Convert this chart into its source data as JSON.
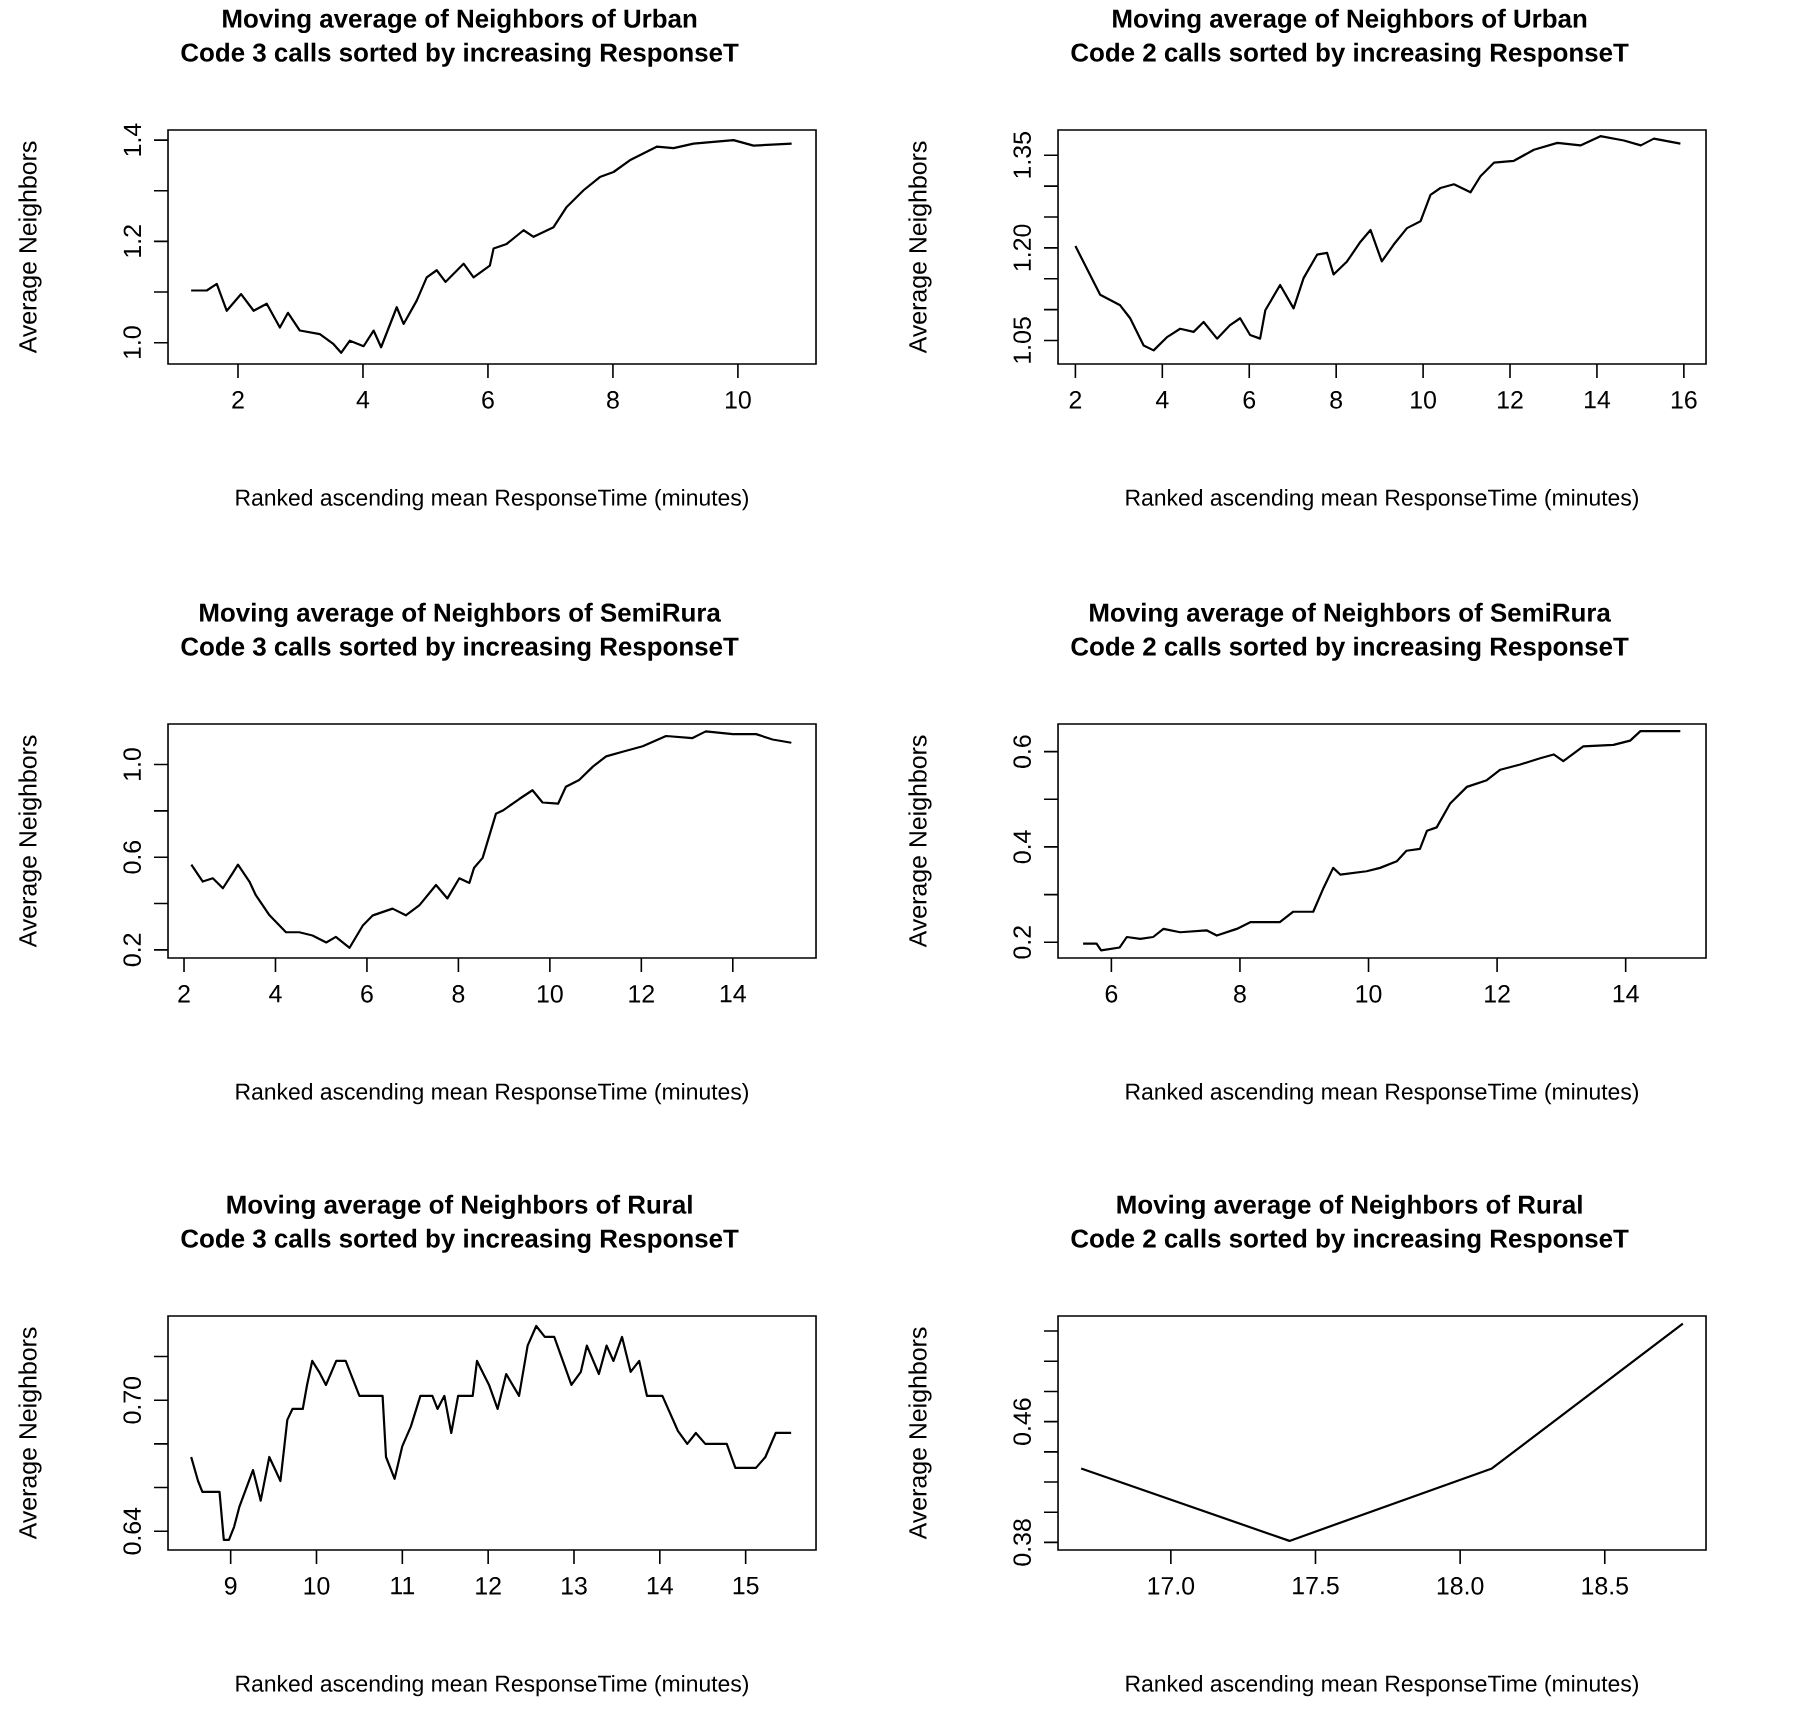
{
  "chart_data": [
    {
      "type": "line",
      "title": "Moving average of Neighbors of Urban",
      "subtitle": "Code 3 calls sorted by increasing ResponseT",
      "xlabel": "Ranked ascending mean ResponseTime (minutes)",
      "ylabel": "Average Neighbors",
      "color": "#000000",
      "x": [
        1.25,
        1.5,
        1.66,
        1.82,
        2.05,
        2.25,
        2.46,
        2.67,
        2.8,
        2.99,
        3.31,
        3.53,
        3.65,
        3.79,
        4.01,
        4.17,
        4.29,
        4.54,
        4.65,
        4.86,
        5.02,
        5.18,
        5.32,
        5.61,
        5.77,
        6.03,
        6.09,
        6.3,
        6.57,
        6.73,
        7.05,
        7.26,
        7.53,
        7.79,
        8.01,
        8.27,
        8.7,
        8.97,
        9.29,
        9.93,
        10.25,
        10.86
      ],
      "values": [
        1.103,
        1.103,
        1.116,
        1.063,
        1.096,
        1.063,
        1.077,
        1.03,
        1.059,
        1.024,
        1.017,
        0.997,
        0.98,
        1.004,
        0.993,
        1.024,
        0.991,
        1.07,
        1.037,
        1.083,
        1.129,
        1.143,
        1.12,
        1.156,
        1.129,
        1.152,
        1.186,
        1.195,
        1.222,
        1.209,
        1.228,
        1.268,
        1.301,
        1.327,
        1.337,
        1.36,
        1.387,
        1.384,
        1.393,
        1.4,
        1.389,
        1.393
      ],
      "xlim": [
        0.88,
        11.25
      ],
      "ylim": [
        0.958,
        1.42
      ],
      "xticks": [
        2,
        4,
        6,
        8,
        10
      ],
      "yticks": [
        {
          "value": 1.0,
          "label": "1.0"
        },
        {
          "value": 1.1,
          "label": null
        },
        1.2,
        {
          "value": 1.3,
          "label": null
        },
        1.4
      ]
    },
    {
      "type": "line",
      "title": "Moving average of Neighbors of Urban",
      "subtitle": "Code 2 calls sorted by increasing ResponseT",
      "xlabel": "Ranked ascending mean ResponseTime (minutes)",
      "ylabel": "Average Neighbors",
      "color": "#000000",
      "x": [
        2.0,
        2.26,
        2.57,
        3.03,
        3.26,
        3.57,
        3.8,
        4.1,
        4.41,
        4.72,
        4.95,
        5.26,
        5.56,
        5.79,
        6.02,
        6.25,
        6.37,
        6.71,
        7.02,
        7.25,
        7.56,
        7.79,
        7.94,
        8.25,
        8.56,
        8.79,
        9.05,
        9.32,
        9.63,
        9.94,
        10.17,
        10.4,
        10.71,
        11.09,
        11.32,
        11.63,
        12.09,
        12.55,
        13.09,
        13.62,
        14.08,
        14.62,
        15.01,
        15.31,
        15.92
      ],
      "values": [
        1.203,
        1.167,
        1.124,
        1.107,
        1.086,
        1.042,
        1.034,
        1.055,
        1.069,
        1.064,
        1.08,
        1.053,
        1.075,
        1.086,
        1.059,
        1.053,
        1.099,
        1.14,
        1.102,
        1.151,
        1.189,
        1.192,
        1.157,
        1.178,
        1.21,
        1.229,
        1.178,
        1.205,
        1.232,
        1.243,
        1.286,
        1.297,
        1.303,
        1.29,
        1.316,
        1.338,
        1.341,
        1.359,
        1.37,
        1.366,
        1.381,
        1.374,
        1.366,
        1.377,
        1.369
      ],
      "xlim": [
        1.6,
        16.51
      ],
      "ylim": [
        1.012,
        1.391
      ],
      "xticks": [
        2,
        4,
        6,
        8,
        10,
        12,
        14,
        16
      ],
      "yticks": [
        1.05,
        {
          "value": 1.1,
          "label": null
        },
        {
          "value": 1.15,
          "label": null
        },
        {
          "value": 1.2,
          "label": "1.20"
        },
        {
          "value": 1.25,
          "label": null
        },
        {
          "value": 1.3,
          "label": null
        },
        1.35
      ]
    },
    {
      "type": "line",
      "title": "Moving average of Neighbors of SemiRura",
      "subtitle": "Code 3 calls sorted by increasing ResponseT",
      "xlabel": "Ranked ascending mean ResponseTime (minutes)",
      "ylabel": "Average Neighbors",
      "color": "#000000",
      "x": [
        2.16,
        2.41,
        2.63,
        2.85,
        3.06,
        3.18,
        3.43,
        3.57,
        3.87,
        4.23,
        4.52,
        4.81,
        5.11,
        5.32,
        5.62,
        5.91,
        6.13,
        6.56,
        6.85,
        7.15,
        7.51,
        7.76,
        8.02,
        8.24,
        8.34,
        8.53,
        8.82,
        8.97,
        9.33,
        9.62,
        9.84,
        10.18,
        10.35,
        10.64,
        10.94,
        11.23,
        11.59,
        12.03,
        12.54,
        13.12,
        13.41,
        14.0,
        14.51,
        14.87,
        15.28
      ],
      "values": [
        0.568,
        0.495,
        0.509,
        0.466,
        0.53,
        0.568,
        0.495,
        0.436,
        0.349,
        0.276,
        0.276,
        0.262,
        0.232,
        0.256,
        0.209,
        0.305,
        0.349,
        0.378,
        0.349,
        0.393,
        0.48,
        0.422,
        0.509,
        0.489,
        0.553,
        0.597,
        0.787,
        0.801,
        0.851,
        0.889,
        0.836,
        0.831,
        0.904,
        0.933,
        0.991,
        1.035,
        1.055,
        1.079,
        1.123,
        1.114,
        1.143,
        1.131,
        1.131,
        1.108,
        1.094
      ],
      "xlim": [
        1.65,
        15.82
      ],
      "ylim": [
        0.165,
        1.175
      ],
      "xticks": [
        2,
        4,
        6,
        8,
        10,
        12,
        14
      ],
      "yticks": [
        0.2,
        {
          "value": 0.4,
          "label": null
        },
        0.6,
        {
          "value": 0.8,
          "label": null
        },
        {
          "value": 1.0,
          "label": "1.0"
        }
      ]
    },
    {
      "type": "line",
      "title": "Moving average of Neighbors of SemiRura",
      "subtitle": "Code 2 calls sorted by increasing ResponseT",
      "xlabel": "Ranked ascending mean ResponseTime (minutes)",
      "ylabel": "Average Neighbors",
      "color": "#000000",
      "x": [
        5.56,
        5.77,
        5.84,
        6.13,
        6.24,
        6.45,
        6.65,
        6.81,
        7.07,
        7.48,
        7.64,
        7.95,
        8.16,
        8.62,
        8.83,
        9.14,
        9.3,
        9.45,
        9.56,
        9.97,
        10.18,
        10.44,
        10.59,
        10.8,
        10.91,
        11.06,
        11.27,
        11.53,
        11.84,
        12.05,
        12.36,
        12.67,
        12.88,
        13.03,
        13.34,
        13.81,
        14.07,
        14.23,
        14.85
      ],
      "values": [
        0.197,
        0.197,
        0.183,
        0.189,
        0.211,
        0.207,
        0.211,
        0.228,
        0.221,
        0.225,
        0.214,
        0.228,
        0.242,
        0.242,
        0.264,
        0.264,
        0.314,
        0.356,
        0.342,
        0.349,
        0.356,
        0.37,
        0.392,
        0.396,
        0.434,
        0.441,
        0.491,
        0.526,
        0.54,
        0.562,
        0.573,
        0.586,
        0.594,
        0.58,
        0.611,
        0.614,
        0.623,
        0.643,
        0.643
      ],
      "xlim": [
        5.17,
        15.25
      ],
      "ylim": [
        0.167,
        0.658
      ],
      "xticks": [
        6,
        8,
        10,
        12,
        14
      ],
      "yticks": [
        0.2,
        {
          "value": 0.3,
          "label": null
        },
        0.4,
        {
          "value": 0.5,
          "label": null
        },
        0.6
      ]
    },
    {
      "type": "line",
      "title": "Moving average of Neighbors of Rural",
      "subtitle": "Code 3 calls sorted by increasing ResponseT",
      "xlabel": "Ranked ascending mean ResponseTime (minutes)",
      "ylabel": "Average Neighbors",
      "color": "#000000",
      "x": [
        8.54,
        8.62,
        8.67,
        8.87,
        8.92,
        8.98,
        9.04,
        9.1,
        9.26,
        9.35,
        9.45,
        9.58,
        9.66,
        9.72,
        9.84,
        9.89,
        9.95,
        10.03,
        10.11,
        10.23,
        10.34,
        10.5,
        10.77,
        10.81,
        10.91,
        11.0,
        11.1,
        11.21,
        11.35,
        11.41,
        11.49,
        11.57,
        11.65,
        11.82,
        11.87,
        12.01,
        12.11,
        12.21,
        12.36,
        12.46,
        12.56,
        12.66,
        12.77,
        12.87,
        12.97,
        13.08,
        13.15,
        13.29,
        13.38,
        13.46,
        13.56,
        13.66,
        13.76,
        13.85,
        14.03,
        14.21,
        14.32,
        14.42,
        14.53,
        14.78,
        14.88,
        15.12,
        15.23,
        15.35,
        15.53
      ],
      "values": [
        0.674,
        0.663,
        0.658,
        0.658,
        0.636,
        0.636,
        0.642,
        0.651,
        0.668,
        0.654,
        0.674,
        0.663,
        0.691,
        0.696,
        0.696,
        0.707,
        0.718,
        0.713,
        0.707,
        0.718,
        0.718,
        0.702,
        0.702,
        0.674,
        0.664,
        0.679,
        0.688,
        0.702,
        0.702,
        0.696,
        0.702,
        0.685,
        0.702,
        0.702,
        0.718,
        0.707,
        0.696,
        0.712,
        0.702,
        0.725,
        0.734,
        0.729,
        0.729,
        0.718,
        0.707,
        0.713,
        0.725,
        0.712,
        0.725,
        0.718,
        0.729,
        0.713,
        0.718,
        0.702,
        0.702,
        0.686,
        0.68,
        0.685,
        0.68,
        0.68,
        0.669,
        0.669,
        0.674,
        0.685,
        0.685
      ],
      "xlim": [
        8.27,
        15.82
      ],
      "ylim": [
        0.6314,
        0.7386
      ],
      "xticks": [
        9,
        10,
        11,
        12,
        13,
        14,
        15
      ],
      "yticks": [
        0.64,
        {
          "value": 0.66,
          "label": null
        },
        {
          "value": 0.68,
          "label": null
        },
        {
          "value": 0.7,
          "label": "0.70"
        },
        {
          "value": 0.72,
          "label": null
        }
      ]
    },
    {
      "type": "line",
      "title": "Moving average of Neighbors of Rural",
      "subtitle": "Code 2 calls sorted by increasing ResponseT",
      "xlabel": "Ranked ascending mean ResponseTime (minutes)",
      "ylabel": "Average Neighbors",
      "color": "#000000",
      "x": [
        16.69,
        17.41,
        18.11,
        18.77
      ],
      "values": [
        0.429,
        0.381,
        0.429,
        0.525
      ],
      "xlim": [
        16.61,
        18.85
      ],
      "ylim": [
        0.375,
        0.53
      ],
      "xticks": [
        {
          "value": 17.0,
          "label": "17.0"
        },
        {
          "value": 17.5,
          "label": "17.5"
        },
        {
          "value": 18.0,
          "label": "18.0"
        },
        {
          "value": 18.5,
          "label": "18.5"
        }
      ],
      "yticks": [
        0.38,
        {
          "value": 0.4,
          "label": null
        },
        {
          "value": 0.42,
          "label": null
        },
        {
          "value": 0.44,
          "label": null
        },
        0.46,
        {
          "value": 0.48,
          "label": null
        },
        {
          "value": 0.5,
          "label": null
        },
        {
          "value": 0.52,
          "label": null
        }
      ]
    }
  ]
}
